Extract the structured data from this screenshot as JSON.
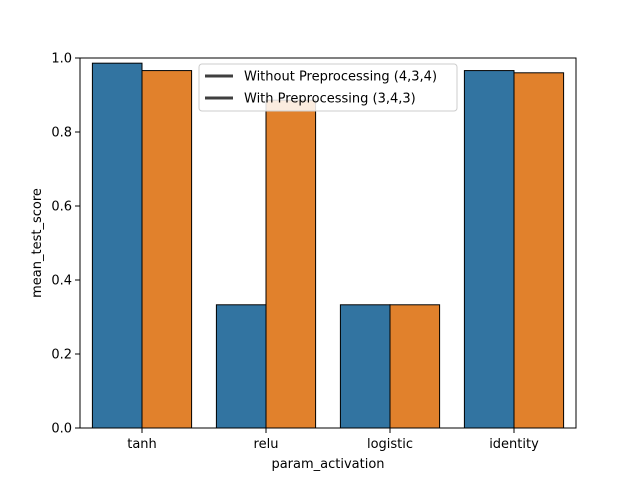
{
  "chart_data": {
    "type": "bar",
    "categories": [
      "tanh",
      "relu",
      "logistic",
      "identity"
    ],
    "series": [
      {
        "name": "Without Preprocessing (4,3,4)",
        "values": [
          0.986,
          0.333,
          0.333,
          0.966
        ],
        "color": "#3274a1"
      },
      {
        "name": "With Preprocessing (3,4,3)",
        "values": [
          0.966,
          0.886,
          0.333,
          0.96
        ],
        "color": "#e1812c"
      }
    ],
    "xlabel": "param_activation",
    "ylabel": "mean_test_score",
    "ylim": [
      0,
      1.0
    ],
    "yticks": [
      "0.0",
      "0.2",
      "0.4",
      "0.6",
      "0.8",
      "1.0"
    ],
    "legend": {
      "placement": "top-center",
      "line_color": "#3f3f3f"
    },
    "grid": false
  }
}
